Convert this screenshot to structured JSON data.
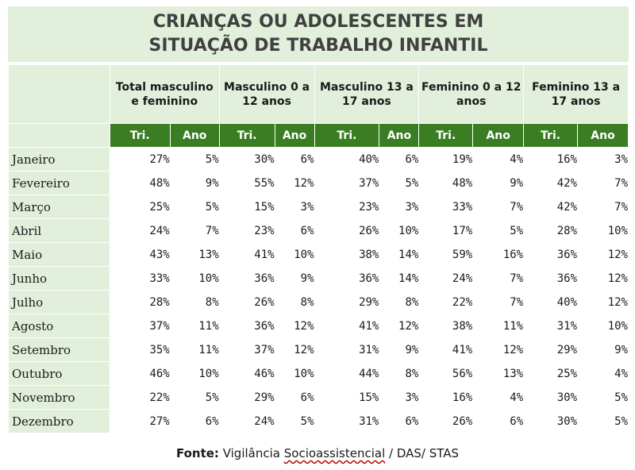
{
  "chart_data": {
    "type": "table",
    "title_lines": [
      "CRIANÇAS OU ADOLESCENTES EM",
      "SITUAÇÃO DE TRABALHO INFANTIL"
    ],
    "groups": [
      {
        "label": "Total masculino e feminino"
      },
      {
        "label": "Masculino 0 a 12 anos"
      },
      {
        "label": "Masculino 13 a 17 anos"
      },
      {
        "label": "Feminino 0 a 12 anos"
      },
      {
        "label": "Feminino 13 a 17 anos"
      }
    ],
    "subheaders": [
      "Tri.",
      "Ano"
    ],
    "rows": [
      {
        "month": "Janeiro",
        "values": [
          "27%",
          "5%",
          "30%",
          "6%",
          "40%",
          "6%",
          "19%",
          "4%",
          "16%",
          "3%"
        ]
      },
      {
        "month": "Fevereiro",
        "values": [
          "48%",
          "9%",
          "55%",
          "12%",
          "37%",
          "5%",
          "48%",
          "9%",
          "42%",
          "7%"
        ]
      },
      {
        "month": "Março",
        "values": [
          "25%",
          "5%",
          "15%",
          "3%",
          "23%",
          "3%",
          "33%",
          "7%",
          "42%",
          "7%"
        ]
      },
      {
        "month": "Abril",
        "values": [
          "24%",
          "7%",
          "23%",
          "6%",
          "26%",
          "10%",
          "17%",
          "5%",
          "28%",
          "10%"
        ]
      },
      {
        "month": "Maio",
        "values": [
          "43%",
          "13%",
          "41%",
          "10%",
          "38%",
          "14%",
          "59%",
          "16%",
          "36%",
          "12%"
        ]
      },
      {
        "month": "Junho",
        "values": [
          "33%",
          "10%",
          "36%",
          "9%",
          "36%",
          "14%",
          "24%",
          "7%",
          "36%",
          "12%"
        ]
      },
      {
        "month": "Julho",
        "values": [
          "28%",
          "8%",
          "26%",
          "8%",
          "29%",
          "8%",
          "22%",
          "7%",
          "40%",
          "12%"
        ]
      },
      {
        "month": "Agosto",
        "values": [
          "37%",
          "11%",
          "36%",
          "12%",
          "41%",
          "12%",
          "38%",
          "11%",
          "31%",
          "10%"
        ]
      },
      {
        "month": "Setembro",
        "values": [
          "35%",
          "11%",
          "37%",
          "12%",
          "31%",
          "9%",
          "41%",
          "12%",
          "29%",
          "9%"
        ]
      },
      {
        "month": "Outubro",
        "values": [
          "46%",
          "10%",
          "46%",
          "10%",
          "44%",
          "8%",
          "56%",
          "13%",
          "25%",
          "4%"
        ]
      },
      {
        "month": "Novembro",
        "values": [
          "22%",
          "5%",
          "29%",
          "6%",
          "15%",
          "3%",
          "16%",
          "4%",
          "30%",
          "5%"
        ]
      },
      {
        "month": "Dezembro",
        "values": [
          "27%",
          "6%",
          "24%",
          "5%",
          "31%",
          "6%",
          "26%",
          "6%",
          "30%",
          "5%"
        ]
      }
    ]
  },
  "source": {
    "label": "Fonte:",
    "text_before": "Vigilância",
    "text_marked": "Socioassistencial",
    "text_after": "/ DAS/ STAS"
  },
  "colors": {
    "header_bg": "#e2efda",
    "subheader_bg": "#3a7d22",
    "cell_bg": "#ffffff"
  }
}
